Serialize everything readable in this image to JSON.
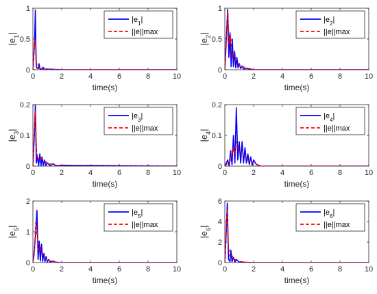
{
  "chart_data": [
    {
      "type": "line",
      "ylabel": "|e1|",
      "ylabel_base": "|e",
      "ylabel_sub": "1",
      "ylabel_end": "|",
      "xlabel": "time(s)",
      "xlim": [
        0,
        10
      ],
      "ylim": [
        0,
        1
      ],
      "xticks": [
        "0",
        "2",
        "4",
        "6",
        "8",
        "10"
      ],
      "yticks": [
        "0",
        "0.5",
        "1"
      ],
      "legend": [
        "|e1|",
        "||e||max"
      ],
      "series": [
        {
          "name": "|e1|",
          "color": "#0000ff",
          "style": "solid",
          "x": [
            0,
            0.12,
            0.17,
            0.2,
            0.24,
            0.3,
            0.38,
            0.42,
            0.5,
            0.6,
            0.7,
            0.8,
            1,
            2,
            10
          ],
          "y": [
            0,
            0.45,
            0.97,
            0.45,
            0.05,
            0.02,
            0.02,
            0.1,
            0.01,
            0.01,
            0.04,
            0.01,
            0.01,
            0,
            0
          ]
        },
        {
          "name": "||e||max",
          "color": "#ff0000",
          "style": "dashed",
          "x": [
            0,
            0.12,
            0.17,
            0.22,
            0.3,
            0.5,
            1,
            10
          ],
          "y": [
            0,
            0.5,
            0.5,
            0.15,
            0.03,
            0.02,
            0,
            0
          ]
        }
      ]
    },
    {
      "type": "line",
      "ylabel": "|e2|",
      "ylabel_base": "|e",
      "ylabel_sub": "2",
      "ylabel_end": "|",
      "xlabel": "time(s)",
      "xlim": [
        0,
        10
      ],
      "ylim": [
        0,
        1
      ],
      "xticks": [
        "0",
        "2",
        "4",
        "6",
        "8",
        "10"
      ],
      "yticks": [
        "0",
        "0.5",
        "1"
      ],
      "legend": [
        "|e2|",
        "||e||max"
      ],
      "series": [
        {
          "name": "|e2|",
          "color": "#0000ff",
          "style": "solid",
          "x": [
            0,
            0.1,
            0.2,
            0.28,
            0.36,
            0.44,
            0.52,
            0.6,
            0.68,
            0.76,
            0.84,
            0.92,
            1.0,
            1.1,
            1.2,
            1.3,
            1.5,
            2,
            10
          ],
          "y": [
            0,
            0.5,
            0.98,
            0.2,
            0.6,
            0.05,
            0.5,
            0.05,
            0.3,
            0.03,
            0.2,
            0.03,
            0.1,
            0.02,
            0.06,
            0.01,
            0.02,
            0,
            0
          ]
        },
        {
          "name": "||e||max",
          "color": "#ff0000",
          "style": "dashed",
          "x": [
            0,
            0.12,
            0.2,
            0.3,
            0.4,
            0.5,
            0.6,
            0.8,
            1.0,
            1.2,
            1.5,
            2,
            10
          ],
          "y": [
            0,
            0.5,
            0.95,
            0.4,
            0.55,
            0.2,
            0.25,
            0.12,
            0.08,
            0.05,
            0.03,
            0,
            0
          ]
        }
      ]
    },
    {
      "type": "line",
      "ylabel": "|e3|",
      "ylabel_base": "|e",
      "ylabel_sub": "3",
      "ylabel_end": "|",
      "xlabel": "time(s)",
      "xlim": [
        0,
        10
      ],
      "ylim": [
        0,
        0.2
      ],
      "xticks": [
        "0",
        "2",
        "4",
        "6",
        "8",
        "10"
      ],
      "yticks": [
        "0",
        "0.1",
        "0.2"
      ],
      "legend": [
        "|e3|",
        "||e||max"
      ],
      "series": [
        {
          "name": "|e3|",
          "color": "#0000ff",
          "style": "solid",
          "x": [
            0,
            0.1,
            0.17,
            0.24,
            0.32,
            0.4,
            0.48,
            0.56,
            0.64,
            0.72,
            0.8,
            0.9,
            1.0,
            1.2,
            1.4,
            1.6,
            2,
            10
          ],
          "y": [
            0,
            0.1,
            0.2,
            0.01,
            0.03,
            0.002,
            0.04,
            0.002,
            0.03,
            0.002,
            0.02,
            0.002,
            0.01,
            0.002,
            0.008,
            0.001,
            0.003,
            0
          ]
        },
        {
          "name": "||e||max",
          "color": "#ff0000",
          "style": "dashed",
          "x": [
            0,
            0.1,
            0.17,
            0.25,
            0.35,
            0.5,
            0.7,
            1.0,
            1.4,
            2,
            10
          ],
          "y": [
            0,
            0.12,
            0.18,
            0.05,
            0.02,
            0.03,
            0.02,
            0.01,
            0.005,
            0,
            0
          ]
        }
      ]
    },
    {
      "type": "line",
      "ylabel": "|e4|",
      "ylabel_base": "|e",
      "ylabel_sub": "4",
      "ylabel_end": "|",
      "xlabel": "time(s)",
      "xlim": [
        0,
        10
      ],
      "ylim": [
        0,
        0.2
      ],
      "xticks": [
        "0",
        "2",
        "4",
        "6",
        "8",
        "10"
      ],
      "yticks": [
        "0",
        "0.1",
        "0.2"
      ],
      "legend": [
        "|e4|",
        "||e||max"
      ],
      "series": [
        {
          "name": "|e4|",
          "color": "#0000ff",
          "style": "solid",
          "x": [
            0,
            0.2,
            0.3,
            0.4,
            0.5,
            0.6,
            0.7,
            0.8,
            0.9,
            1.0,
            1.1,
            1.2,
            1.3,
            1.4,
            1.5,
            1.6,
            1.7,
            1.8,
            1.9,
            2.0,
            2.2,
            2.5,
            10
          ],
          "y": [
            0,
            0.02,
            0,
            0.05,
            0.005,
            0.1,
            0.01,
            0.19,
            0.02,
            0.08,
            0.01,
            0.08,
            0.01,
            0.06,
            0.01,
            0.04,
            0.005,
            0.03,
            0.003,
            0.02,
            0.005,
            0,
            0
          ]
        },
        {
          "name": "||e||max",
          "color": "#ff0000",
          "style": "dashed",
          "x": [
            0,
            0.2,
            0.4,
            0.55,
            0.7,
            0.8,
            1.0,
            1.2,
            1.4,
            1.6,
            1.8,
            2.0,
            2.5,
            10
          ],
          "y": [
            0,
            0.01,
            0.02,
            0.06,
            0.04,
            0.08,
            0.05,
            0.04,
            0.03,
            0.02,
            0.015,
            0.01,
            0,
            0
          ]
        }
      ]
    },
    {
      "type": "line",
      "ylabel": "|e5|",
      "ylabel_base": "|e",
      "ylabel_sub": "5",
      "ylabel_end": "|",
      "xlabel": "time(s)",
      "xlim": [
        0,
        10
      ],
      "ylim": [
        0,
        2
      ],
      "xticks": [
        "0",
        "2",
        "4",
        "6",
        "8",
        "10"
      ],
      "yticks": [
        "0",
        "1",
        "2"
      ],
      "legend": [
        "|e5|",
        "||e||max"
      ],
      "series": [
        {
          "name": "|e5|",
          "color": "#0000ff",
          "style": "solid",
          "x": [
            0,
            0.1,
            0.2,
            0.28,
            0.36,
            0.44,
            0.52,
            0.6,
            0.68,
            0.76,
            0.84,
            0.92,
            1.0,
            1.1,
            1.2,
            1.4,
            1.6,
            2,
            10
          ],
          "y": [
            0,
            0.4,
            1.0,
            1.7,
            0.1,
            0.7,
            0.05,
            0.6,
            0.04,
            0.3,
            0.03,
            0.2,
            0.02,
            0.1,
            0.01,
            0.05,
            0.01,
            0,
            0
          ]
        },
        {
          "name": "||e||max",
          "color": "#ff0000",
          "style": "dashed",
          "x": [
            0,
            0.1,
            0.2,
            0.3,
            0.4,
            0.5,
            0.6,
            0.8,
            1.0,
            1.2,
            1.5,
            2,
            10
          ],
          "y": [
            0,
            0.3,
            1.3,
            0.9,
            0.4,
            0.5,
            0.35,
            0.15,
            0.1,
            0.05,
            0.02,
            0,
            0
          ]
        }
      ]
    },
    {
      "type": "line",
      "ylabel": "|e6|",
      "ylabel_base": "|e",
      "ylabel_sub": "6",
      "ylabel_end": "|",
      "xlabel": "time(s)",
      "xlim": [
        0,
        10
      ],
      "ylim": [
        0,
        6
      ],
      "xticks": [
        "0",
        "2",
        "4",
        "6",
        "8",
        "10"
      ],
      "yticks": [
        "0",
        "2",
        "4",
        "6"
      ],
      "legend": [
        "|e6|",
        "||e||max"
      ],
      "series": [
        {
          "name": "|e6|",
          "color": "#0000ff",
          "style": "solid",
          "x": [
            0,
            0.1,
            0.17,
            0.25,
            0.3,
            0.36,
            0.42,
            0.5,
            0.6,
            0.7,
            0.8,
            1.0,
            1.5,
            2,
            10
          ],
          "y": [
            0,
            3.0,
            5.8,
            0.4,
            0.2,
            0.1,
            1.2,
            0.1,
            0.5,
            0.05,
            0.3,
            0.05,
            0.02,
            0,
            0
          ]
        },
        {
          "name": "||e||max",
          "color": "#ff0000",
          "style": "dashed",
          "x": [
            0,
            0.1,
            0.17,
            0.25,
            0.35,
            0.45,
            0.6,
            0.8,
            1.0,
            1.5,
            2,
            10
          ],
          "y": [
            0,
            3.5,
            5.2,
            1.5,
            0.6,
            0.8,
            0.4,
            0.2,
            0.1,
            0.03,
            0,
            0
          ]
        }
      ]
    }
  ]
}
